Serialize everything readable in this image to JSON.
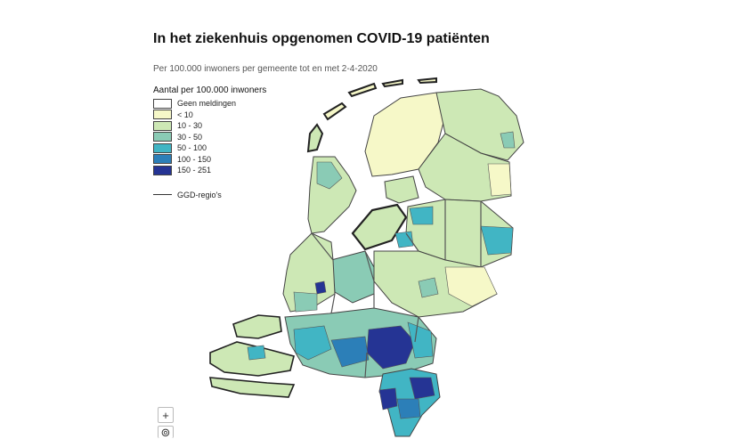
{
  "title": "In het ziekenhuis opgenomen COVID-19 patiënten",
  "subtitle": "Per 100.000 inwoners per gemeente tot en met 2-4-2020",
  "legend": {
    "title": "Aantal per 100.000 inwoners",
    "items": [
      {
        "label": "Geen meldingen",
        "color": "#ffffff"
      },
      {
        "label": "< 10",
        "color": "#f6f8c8"
      },
      {
        "label": "10 - 30",
        "color": "#cde8b5"
      },
      {
        "label": "30 - 50",
        "color": "#8acbb5"
      },
      {
        "label": "50 - 100",
        "color": "#41b5c4"
      },
      {
        "label": "100 - 150",
        "color": "#2c7fb8"
      },
      {
        "label": "150 - 251",
        "color": "#253494"
      }
    ],
    "ggd_label": "GGD-regio's"
  },
  "zoom": {
    "in_label": "+",
    "reset_label": "⊚"
  },
  "colors": {
    "border": "#333333",
    "water": "#ffffff"
  }
}
